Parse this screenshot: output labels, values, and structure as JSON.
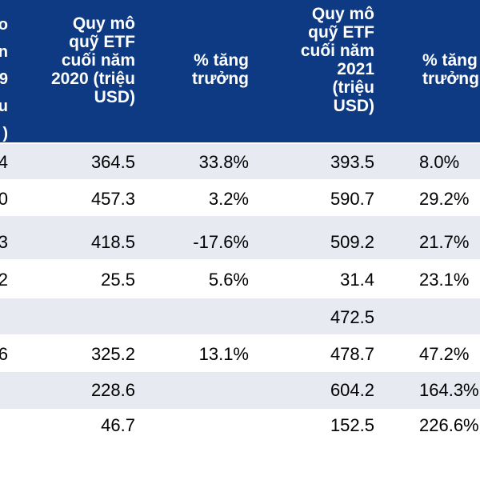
{
  "table": {
    "headers": [
      {
        "key": "col0",
        "text": "o\nn\n9\nu\n)"
      },
      {
        "key": "size2020",
        "text": "Quy mô\nquỹ ETF\ncuối năm\n2020 (triệu\nUSD)"
      },
      {
        "key": "growth2020",
        "text": "% tăng\ntrưởng"
      },
      {
        "key": "size2021",
        "text": "Quy mô\nquỹ ETF\ncuối năm\n2021\n(triệu\nUSD)"
      },
      {
        "key": "growth2021",
        "text": "% tăng\ntrưởng"
      }
    ],
    "rows": [
      {
        "col0": "4",
        "size2020": "364.5",
        "growth2020": "33.8%",
        "size2021": "393.5",
        "growth2021": "8.0%"
      },
      {
        "col0": "0",
        "size2020": "457.3",
        "growth2020": "3.2%",
        "size2021": "590.7",
        "growth2021": "29.2%"
      },
      {
        "col0": "3",
        "size2020": "418.5",
        "growth2020": "-17.6%",
        "size2021": "509.2",
        "growth2021": "21.7%"
      },
      {
        "col0": "2",
        "size2020": "25.5",
        "growth2020": "5.6%",
        "size2021": "31.4",
        "growth2021": "23.1%"
      },
      {
        "col0": "",
        "size2020": "",
        "growth2020": "",
        "size2021": "472.5",
        "growth2021": ""
      },
      {
        "col0": "6",
        "size2020": "325.2",
        "growth2020": "13.1%",
        "size2021": "478.7",
        "growth2021": "47.2%"
      },
      {
        "col0": "",
        "size2020": "228.6",
        "growth2020": "",
        "size2021": "604.2",
        "growth2021": "164.3%"
      },
      {
        "col0": "",
        "size2020": "46.7",
        "growth2020": "",
        "size2021": "152.5",
        "growth2021": "226.6%"
      }
    ]
  },
  "colors": {
    "header_bg": "#0d3a82",
    "header_text": "#ffffff",
    "row_shade": "#e8eaf2"
  }
}
